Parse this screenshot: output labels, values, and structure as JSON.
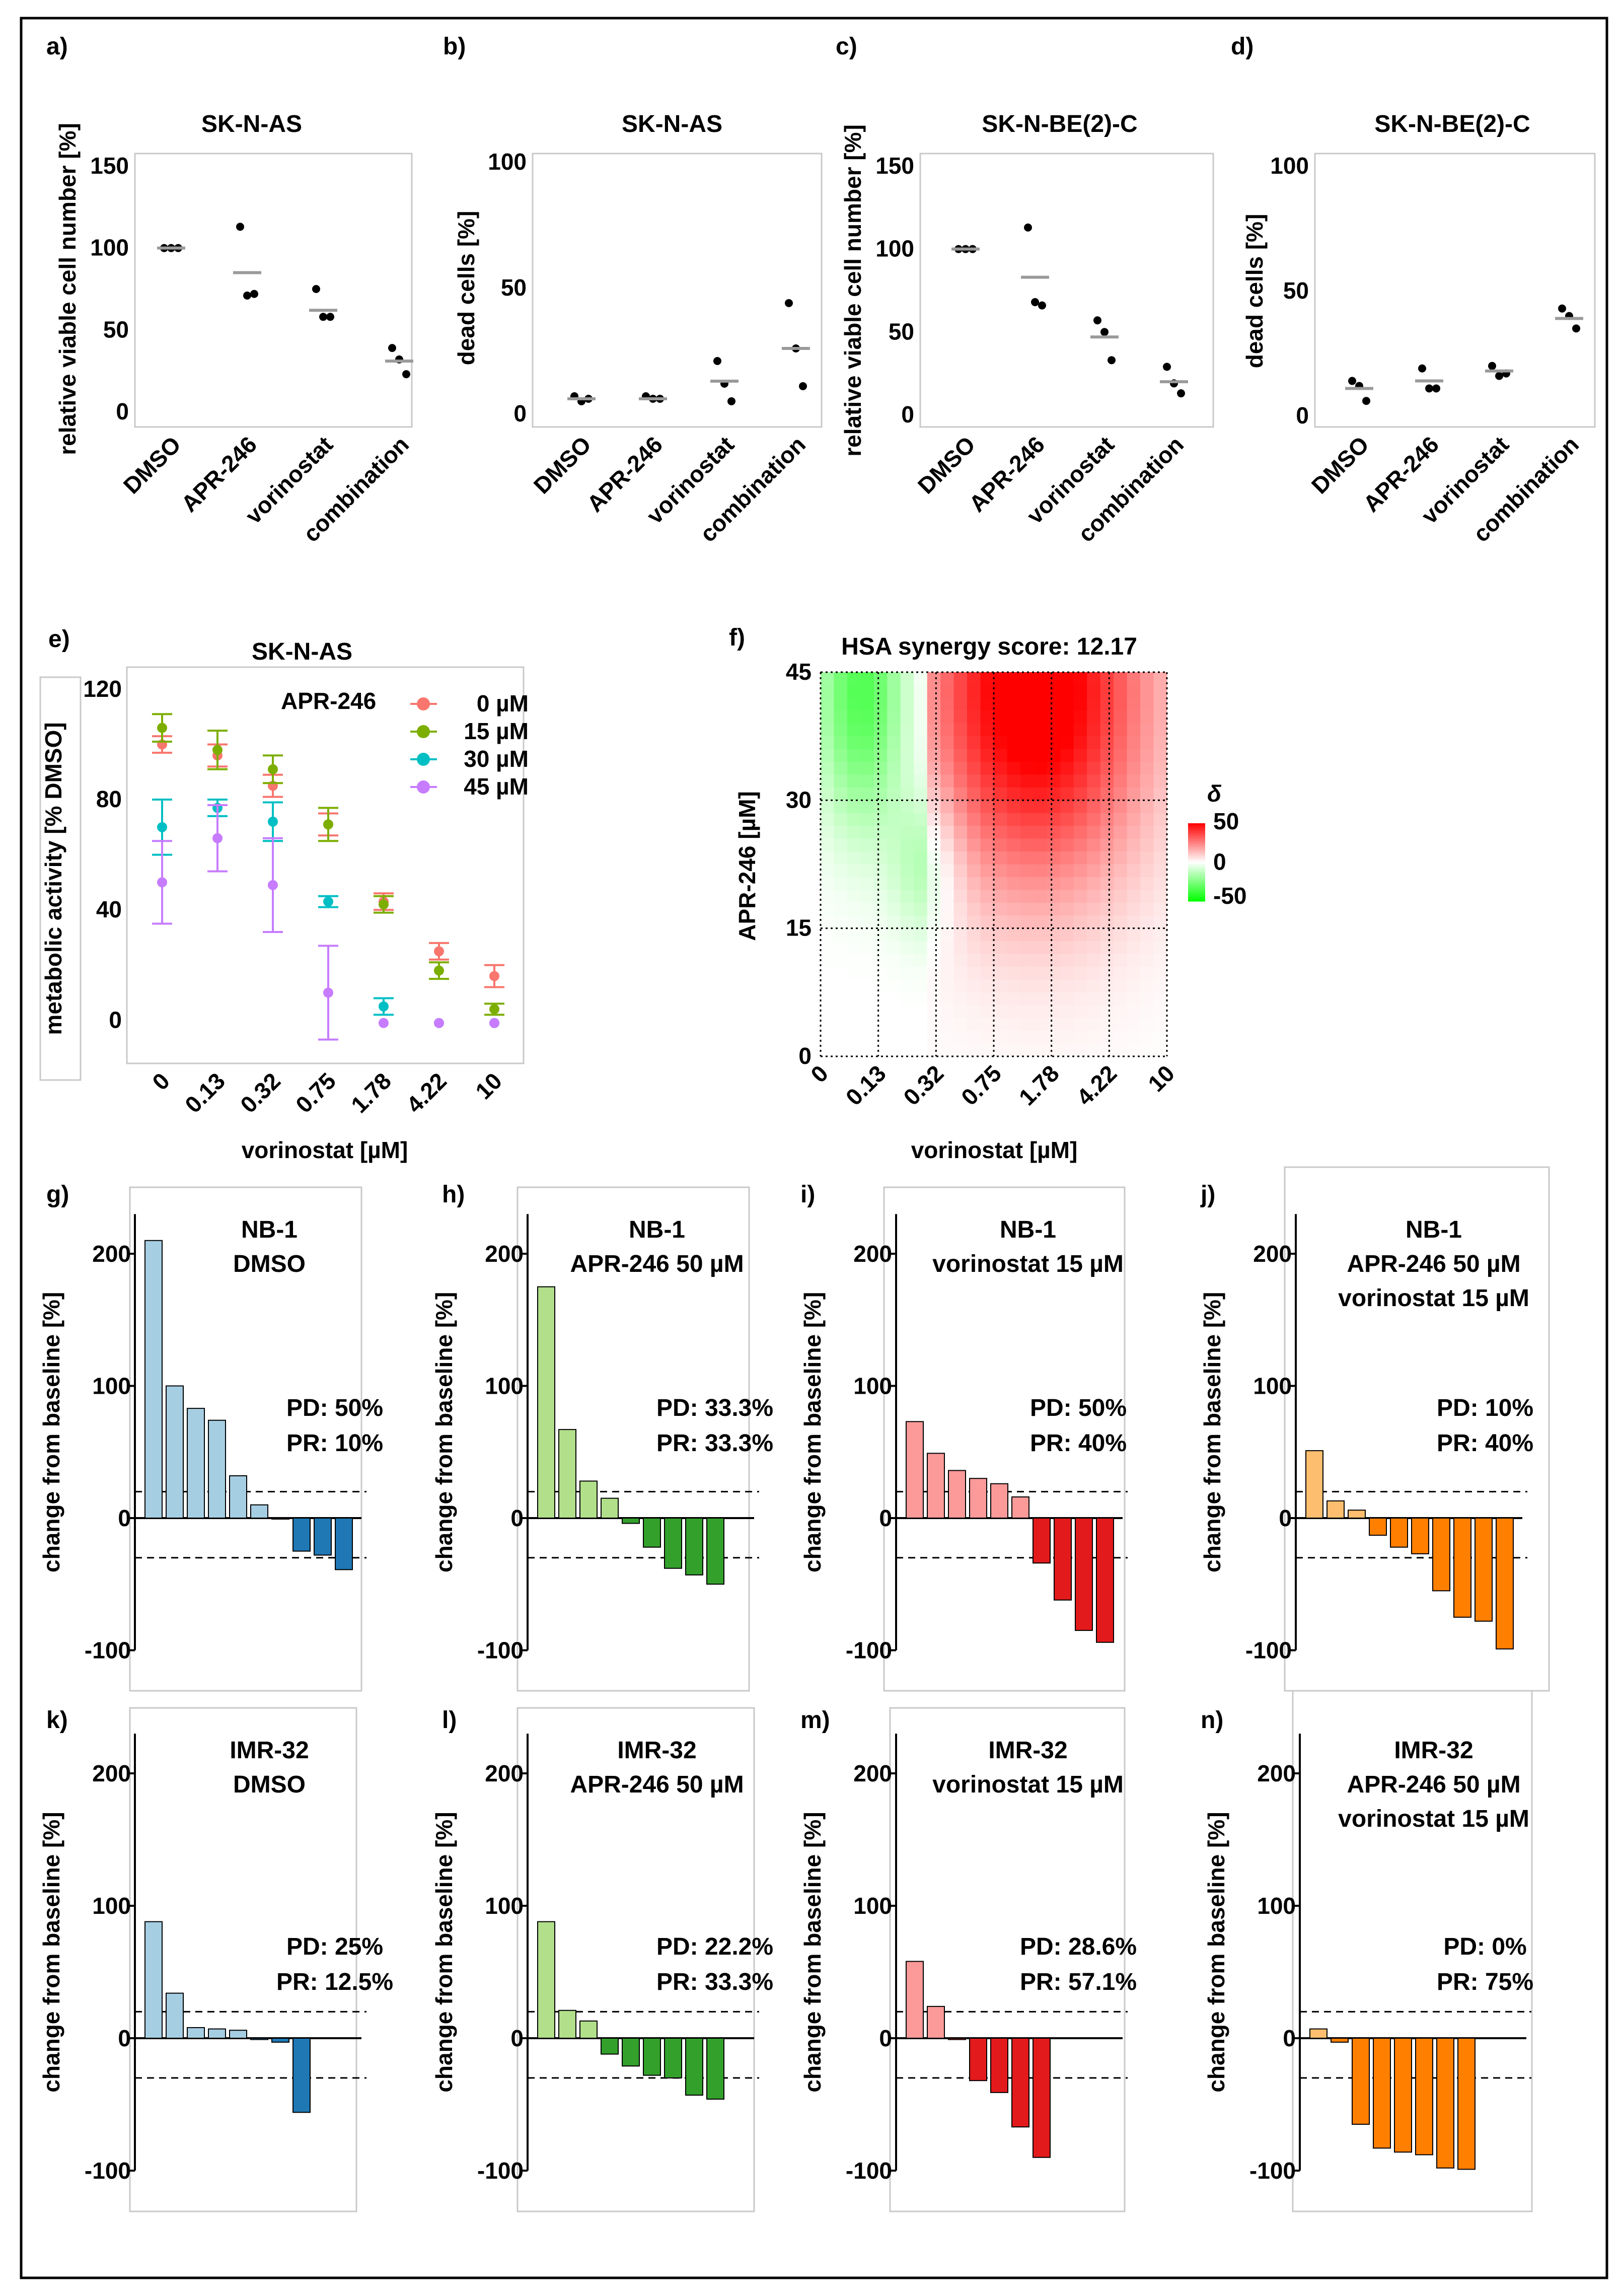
{
  "chart_data": [
    {
      "id": "a",
      "panel_label": "a)",
      "type": "scatter",
      "title": "SK-N-AS",
      "ylabel": "relative viable cell number [%]",
      "categories": [
        "DMSO",
        "APR-246",
        "vorinostat",
        "combination"
      ],
      "yticks": [
        "0",
        "50",
        "100",
        "150"
      ],
      "ylim": [
        0,
        150
      ],
      "points": [
        [
          100,
          100,
          100
        ],
        [
          113,
          71,
          72
        ],
        [
          75,
          58,
          58
        ],
        [
          39,
          32,
          23
        ]
      ],
      "means": [
        100,
        85,
        62,
        31
      ]
    },
    {
      "id": "b",
      "panel_label": "b)",
      "type": "scatter",
      "title": "SK-N-AS",
      "ylabel": "dead cells [%]",
      "categories": [
        "DMSO",
        "APR-246",
        "vorinostat",
        "combination"
      ],
      "yticks": [
        "0",
        "50",
        "100"
      ],
      "ylim": [
        0,
        100
      ],
      "points": [
        [
          7,
          5,
          6
        ],
        [
          7,
          6,
          6
        ],
        [
          21,
          12,
          5
        ],
        [
          44,
          26,
          11
        ]
      ],
      "means": [
        6,
        6,
        13,
        26
      ]
    },
    {
      "id": "c",
      "panel_label": "c)",
      "type": "scatter",
      "title": "SK-N-BE(2)-C",
      "ylabel": "relative viable cell number [%]",
      "categories": [
        "DMSO",
        "APR-246",
        "vorinostat",
        "combination"
      ],
      "yticks": [
        "0",
        "50",
        "100",
        "150"
      ],
      "ylim": [
        0,
        150
      ],
      "points": [
        [
          100,
          100,
          100
        ],
        [
          113,
          68,
          66
        ],
        [
          57,
          50,
          33
        ],
        [
          29,
          19,
          13
        ]
      ],
      "means": [
        100,
        83,
        47,
        20
      ]
    },
    {
      "id": "d",
      "panel_label": "d)",
      "type": "scatter",
      "title": "SK-N-BE(2)-C",
      "ylabel": "dead cells [%]",
      "categories": [
        "DMSO",
        "APR-246",
        "vorinostat",
        "combination"
      ],
      "yticks": [
        "0",
        "50",
        "100"
      ],
      "ylim": [
        0,
        100
      ],
      "points": [
        [
          14,
          12,
          6
        ],
        [
          19,
          11,
          11
        ],
        [
          20,
          16,
          17
        ],
        [
          43,
          40,
          35
        ]
      ],
      "means": [
        11,
        14,
        18,
        39
      ]
    },
    {
      "id": "e",
      "panel_label": "e)",
      "type": "scatter",
      "title": "SK-N-AS",
      "xlabel": "vorinostat [µM]",
      "ylabel": "metabolic activity [% DMSO]",
      "categories": [
        "0",
        "0.13",
        "0.32",
        "0.75",
        "1.78",
        "4.22",
        "10"
      ],
      "yticks": [
        "0",
        "40",
        "80",
        "120"
      ],
      "ylim": [
        -12,
        122
      ],
      "legend_title": "APR-246",
      "series": [
        {
          "name": "0 µM",
          "color": "#f8766d",
          "values": [
            100,
            96,
            85,
            71,
            43,
            25,
            16
          ],
          "err": [
            3,
            4,
            4,
            4,
            3,
            3,
            4
          ]
        },
        {
          "name": "15 µM",
          "color": "#7cae00",
          "values": [
            106,
            98,
            91,
            71,
            42,
            18,
            4
          ],
          "err": [
            5,
            7,
            5,
            6,
            3,
            3,
            2
          ]
        },
        {
          "name": "30 µM",
          "color": "#00bfc4",
          "values": [
            70,
            77,
            72,
            43,
            5,
            -1,
            -1
          ],
          "err": [
            10,
            3,
            7,
            2,
            3,
            1,
            1
          ]
        },
        {
          "name": "45 µM",
          "color": "#c77cff",
          "values": [
            50,
            66,
            49,
            10,
            -1,
            -1,
            -1
          ],
          "err": [
            15,
            12,
            17,
            17,
            1,
            1,
            1
          ]
        }
      ]
    },
    {
      "id": "f",
      "panel_label": "f)",
      "type": "heatmap",
      "title": "HSA synergy score: 12.17",
      "xlabel": "vorinostat [µM]",
      "ylabel": "APR-246 [µM]",
      "x": [
        "0",
        "0.13",
        "0.32",
        "0.75",
        "1.78",
        "4.22",
        "10"
      ],
      "y": [
        "0",
        "15",
        "30",
        "45"
      ],
      "legend_title": "δ",
      "legend_ticks": [
        "50",
        "0",
        "-50"
      ],
      "range": [
        -50,
        50
      ]
    },
    {
      "id": "g",
      "panel_label": "g)",
      "type": "bar",
      "title_lines": [
        "NB-1",
        "DMSO"
      ],
      "stats": [
        "PD: 50%",
        "PR: 10%"
      ],
      "light": "#a6cee3",
      "dark": "#1f78b4",
      "ylabel": "change from baseline [%]",
      "yticks": [
        "-100",
        "0",
        "100",
        "200"
      ],
      "values": [
        210,
        100,
        83,
        74,
        32,
        10,
        0,
        -25,
        -28,
        -39
      ]
    },
    {
      "id": "h",
      "panel_label": "h)",
      "type": "bar",
      "title_lines": [
        "NB-1",
        "APR-246 50 µM"
      ],
      "stats": [
        "PD: 33.3%",
        "PR: 33.3%"
      ],
      "light": "#b2df8a",
      "dark": "#33a02c",
      "ylabel": "change from baseline [%]",
      "yticks": [
        "-100",
        "0",
        "100",
        "200"
      ],
      "values": [
        175,
        67,
        28,
        15,
        -4,
        -22,
        -38,
        -43,
        -50
      ]
    },
    {
      "id": "i",
      "panel_label": "i)",
      "type": "bar",
      "title_lines": [
        "NB-1",
        "vorinostat 15 µM"
      ],
      "stats": [
        "PD: 50%",
        "PR: 40%"
      ],
      "light": "#fb9a99",
      "dark": "#e31a1c",
      "ylabel": "change from baseline [%]",
      "yticks": [
        "-100",
        "0",
        "100",
        "200"
      ],
      "values": [
        73,
        49,
        36,
        30,
        26,
        16,
        -34,
        -62,
        -85,
        -94
      ]
    },
    {
      "id": "j",
      "panel_label": "j)",
      "type": "bar",
      "title_lines": [
        "NB-1",
        "APR-246 50 µM",
        "vorinostat 15 µM"
      ],
      "stats": [
        "PD: 10%",
        "PR: 40%"
      ],
      "light": "#fdbf6f",
      "dark": "#ff7f00",
      "ylabel": "change from baseline [%]",
      "yticks": [
        "-100",
        "0",
        "100",
        "200"
      ],
      "values": [
        51,
        13,
        6,
        -13,
        -22,
        -27,
        -55,
        -75,
        -78,
        -99
      ]
    },
    {
      "id": "k",
      "panel_label": "k)",
      "type": "bar",
      "title_lines": [
        "IMR-32",
        "DMSO"
      ],
      "stats": [
        "PD: 25%",
        "PR: 12.5%"
      ],
      "light": "#a6cee3",
      "dark": "#1f78b4",
      "ylabel": "change from baseline [%]",
      "yticks": [
        "-100",
        "0",
        "100",
        "200"
      ],
      "values": [
        88,
        34,
        8,
        7,
        6,
        -1,
        -3,
        -56
      ]
    },
    {
      "id": "l",
      "panel_label": "l)",
      "type": "bar",
      "title_lines": [
        "IMR-32",
        "APR-246 50 µM"
      ],
      "stats": [
        "PD: 22.2%",
        "PR: 33.3%"
      ],
      "light": "#b2df8a",
      "dark": "#33a02c",
      "ylabel": "change from baseline [%]",
      "yticks": [
        "-100",
        "0",
        "100",
        "200"
      ],
      "values": [
        88,
        21,
        13,
        -12,
        -21,
        -28,
        -30,
        -43,
        -46
      ]
    },
    {
      "id": "m",
      "panel_label": "m)",
      "type": "bar",
      "title_lines": [
        "IMR-32",
        "vorinostat 15 µM"
      ],
      "stats": [
        "PD: 28.6%",
        "PR: 57.1%"
      ],
      "light": "#fb9a99",
      "dark": "#e31a1c",
      "ylabel": "change from baseline [%]",
      "yticks": [
        "-100",
        "0",
        "100",
        "200"
      ],
      "values": [
        58,
        24,
        -1,
        -32,
        -41,
        -67,
        -90
      ]
    },
    {
      "id": "n",
      "panel_label": "n)",
      "type": "bar",
      "title_lines": [
        "IMR-32",
        "APR-246 50 µM",
        "vorinostat 15 µM"
      ],
      "stats": [
        "PD: 0%",
        "PR: 75%"
      ],
      "light": "#fdbf6f",
      "dark": "#ff7f00",
      "ylabel": "change from baseline [%]",
      "yticks": [
        "-100",
        "0",
        "100",
        "200"
      ],
      "values": [
        7,
        -3,
        -65,
        -83,
        -86,
        -88,
        -98,
        -99
      ]
    }
  ]
}
